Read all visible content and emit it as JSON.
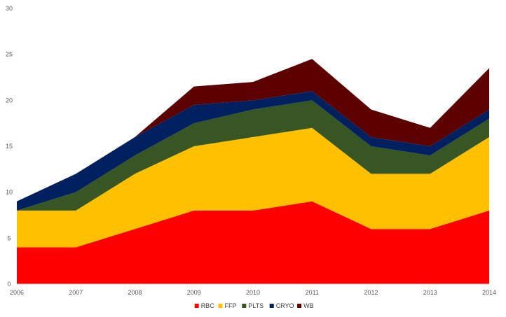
{
  "chart_data": {
    "type": "area",
    "stacked": true,
    "title": "",
    "xlabel": "",
    "ylabel": "",
    "x": [
      "2006",
      "2007",
      "2008",
      "2009",
      "2010",
      "2011",
      "2012",
      "2013",
      "2014"
    ],
    "ylim": [
      0,
      30
    ],
    "yticks": [
      0,
      5,
      10,
      15,
      20,
      25,
      30
    ],
    "grid": false,
    "legend_position": "bottom",
    "series": [
      {
        "name": "RBC",
        "color": "#ff0000",
        "values": [
          4,
          4,
          6,
          8,
          8,
          9,
          6,
          6,
          8
        ]
      },
      {
        "name": "FFP",
        "color": "#ffc000",
        "values": [
          4,
          4,
          6,
          7,
          8,
          8,
          6,
          6,
          8
        ]
      },
      {
        "name": "PLTS",
        "color": "#375623",
        "values": [
          0,
          2,
          2,
          2.5,
          3,
          3,
          3,
          2,
          2
        ]
      },
      {
        "name": "CRYO",
        "color": "#002060",
        "values": [
          1,
          2,
          2,
          2,
          1,
          1,
          1,
          1,
          1
        ]
      },
      {
        "name": "WB",
        "color": "#5c0000",
        "values": [
          0,
          0,
          0,
          2,
          2,
          3.5,
          3,
          2,
          4.5
        ]
      }
    ]
  }
}
